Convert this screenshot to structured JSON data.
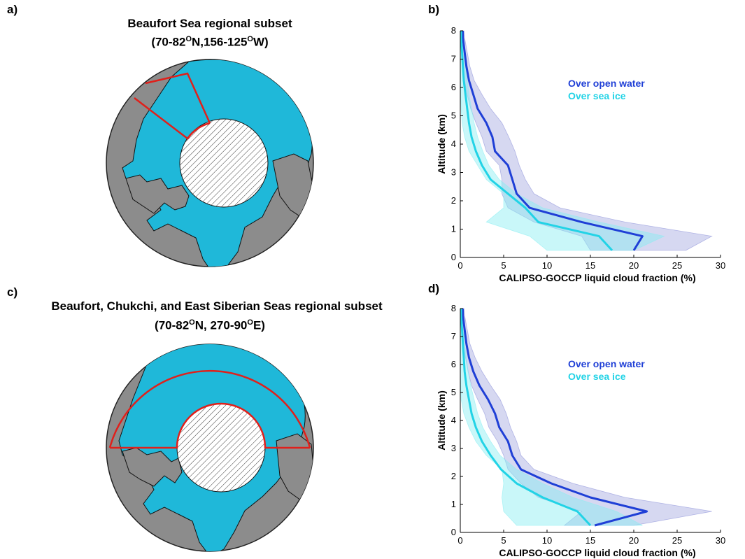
{
  "panels": {
    "a": {
      "letter": "a)",
      "title_line1": "Beaufort Sea regional subset",
      "title_line2_parts": [
        "(70-82",
        "O",
        "N,156-125",
        "O",
        "W)"
      ]
    },
    "b": {
      "letter": "b)"
    },
    "c": {
      "letter": "c)",
      "title_line1": "Beaufort, Chukchi, and East Siberian Seas regional subset",
      "title_line2_parts": [
        "(70-82",
        "O",
        "N, 270-90",
        "O",
        "E)"
      ]
    },
    "d": {
      "letter": "d)"
    }
  },
  "colors": {
    "open_water": "#1f3fd6",
    "sea_ice": "#22d3e6",
    "open_water_fill": "#8a8fd8",
    "sea_ice_fill": "#88eef2",
    "land": "#8c8c8c",
    "ocean": "#1fb8d9",
    "region_outline": "#e0201b"
  },
  "chart_data": [
    {
      "panel": "b",
      "type": "line",
      "xlabel": "CALIPSO-GOCCP liquid cloud fraction (%)",
      "ylabel": "Altitude (km)",
      "xlim": [
        0,
        30
      ],
      "ylim": [
        0,
        8
      ],
      "xticks": [
        0,
        5,
        10,
        15,
        20,
        25,
        30
      ],
      "yticks": [
        0,
        1,
        2,
        3,
        4,
        5,
        6,
        7,
        8
      ],
      "grid": false,
      "legend": "top-right",
      "series": [
        {
          "name": "Over open water",
          "color_key": "open_water",
          "altitude": [
            0.25,
            0.75,
            1.25,
            1.75,
            2.25,
            2.75,
            3.25,
            3.75,
            4.25,
            4.75,
            5.25,
            5.75,
            6.25,
            6.75,
            7.25,
            7.75,
            8.0
          ],
          "mean": [
            20.0,
            21.0,
            14.0,
            8.0,
            6.5,
            6.0,
            5.5,
            4.0,
            3.7,
            3.0,
            2.0,
            1.5,
            1.0,
            0.7,
            0.5,
            0.3,
            0.3
          ],
          "lower": [
            15.0,
            14.0,
            8.5,
            5.5,
            4.8,
            4.8,
            4.5,
            3.0,
            2.5,
            1.8,
            1.2,
            0.8,
            0.5,
            0.3,
            0.2,
            0.1,
            0.1
          ],
          "upper": [
            26.0,
            29.0,
            19.0,
            11.5,
            8.5,
            7.5,
            6.8,
            6.3,
            5.6,
            4.8,
            3.5,
            2.5,
            1.6,
            1.1,
            0.8,
            0.5,
            0.4
          ]
        },
        {
          "name": "Over sea ice",
          "color_key": "sea_ice",
          "altitude": [
            0.25,
            0.75,
            1.25,
            1.75,
            2.25,
            2.75,
            3.25,
            3.75,
            4.25,
            4.75,
            5.25,
            5.75,
            6.25,
            6.75,
            7.25,
            7.75,
            8.0
          ],
          "mean": [
            17.5,
            16.0,
            9.0,
            7.5,
            5.5,
            3.5,
            2.5,
            1.8,
            1.3,
            1.0,
            0.8,
            0.6,
            0.4,
            0.3,
            0.2,
            0.1,
            0.1
          ],
          "lower": [
            10.0,
            8.0,
            3.0,
            5.0,
            5.0,
            3.0,
            2.0,
            1.0,
            0.5,
            0.2,
            0.1,
            0.05,
            0.05,
            0.0,
            0.0,
            0.0,
            0.0
          ],
          "upper": [
            20.0,
            23.5,
            16.0,
            9.5,
            6.5,
            4.5,
            3.3,
            2.6,
            2.0,
            1.6,
            1.3,
            1.0,
            0.8,
            0.6,
            0.4,
            0.3,
            0.2
          ]
        }
      ]
    },
    {
      "panel": "d",
      "type": "line",
      "xlabel": "CALIPSO-GOCCP liquid cloud fraction (%)",
      "ylabel": "Altitude (km)",
      "xlim": [
        0,
        30
      ],
      "ylim": [
        0,
        8
      ],
      "xticks": [
        0,
        5,
        10,
        15,
        20,
        25,
        30
      ],
      "yticks": [
        0,
        1,
        2,
        3,
        4,
        5,
        6,
        7,
        8
      ],
      "grid": false,
      "legend": "top-right",
      "series": [
        {
          "name": "Over open water",
          "color_key": "open_water",
          "altitude": [
            0.25,
            0.75,
            1.25,
            1.75,
            2.25,
            2.75,
            3.25,
            3.75,
            4.25,
            4.75,
            5.25,
            5.75,
            6.25,
            6.75,
            7.25,
            7.75,
            8.0
          ],
          "mean": [
            15.5,
            21.5,
            15.0,
            10.5,
            7.0,
            6.0,
            5.5,
            4.5,
            4.0,
            3.2,
            2.2,
            1.5,
            1.0,
            0.7,
            0.5,
            0.3,
            0.3
          ],
          "lower": [
            12.0,
            14.0,
            9.0,
            7.0,
            5.5,
            5.0,
            4.3,
            3.3,
            2.8,
            2.0,
            1.3,
            0.9,
            0.6,
            0.3,
            0.2,
            0.1,
            0.1
          ],
          "upper": [
            20.0,
            29.0,
            19.0,
            13.0,
            8.5,
            7.0,
            6.5,
            5.8,
            5.3,
            4.6,
            3.5,
            2.5,
            1.7,
            1.1,
            0.8,
            0.5,
            0.4
          ]
        },
        {
          "name": "Over sea ice",
          "color_key": "sea_ice",
          "altitude": [
            0.25,
            0.75,
            1.25,
            1.75,
            2.25,
            2.75,
            3.25,
            3.75,
            4.25,
            4.75,
            5.25,
            5.75,
            6.25,
            6.75,
            7.25,
            7.75,
            8.0
          ],
          "mean": [
            15.0,
            13.5,
            9.5,
            6.5,
            4.7,
            3.5,
            2.5,
            1.8,
            1.3,
            1.0,
            0.7,
            0.5,
            0.4,
            0.3,
            0.2,
            0.1,
            0.1
          ],
          "lower": [
            6.5,
            5.0,
            4.8,
            5.0,
            4.8,
            3.0,
            1.8,
            1.0,
            0.4,
            0.1,
            0.05,
            0.0,
            0.0,
            0.0,
            0.0,
            0.0,
            0.0
          ],
          "upper": [
            21.0,
            18.0,
            13.0,
            9.5,
            6.5,
            4.6,
            3.5,
            2.6,
            2.0,
            1.6,
            1.2,
            0.9,
            0.7,
            0.5,
            0.4,
            0.3,
            0.2
          ]
        }
      ]
    }
  ]
}
